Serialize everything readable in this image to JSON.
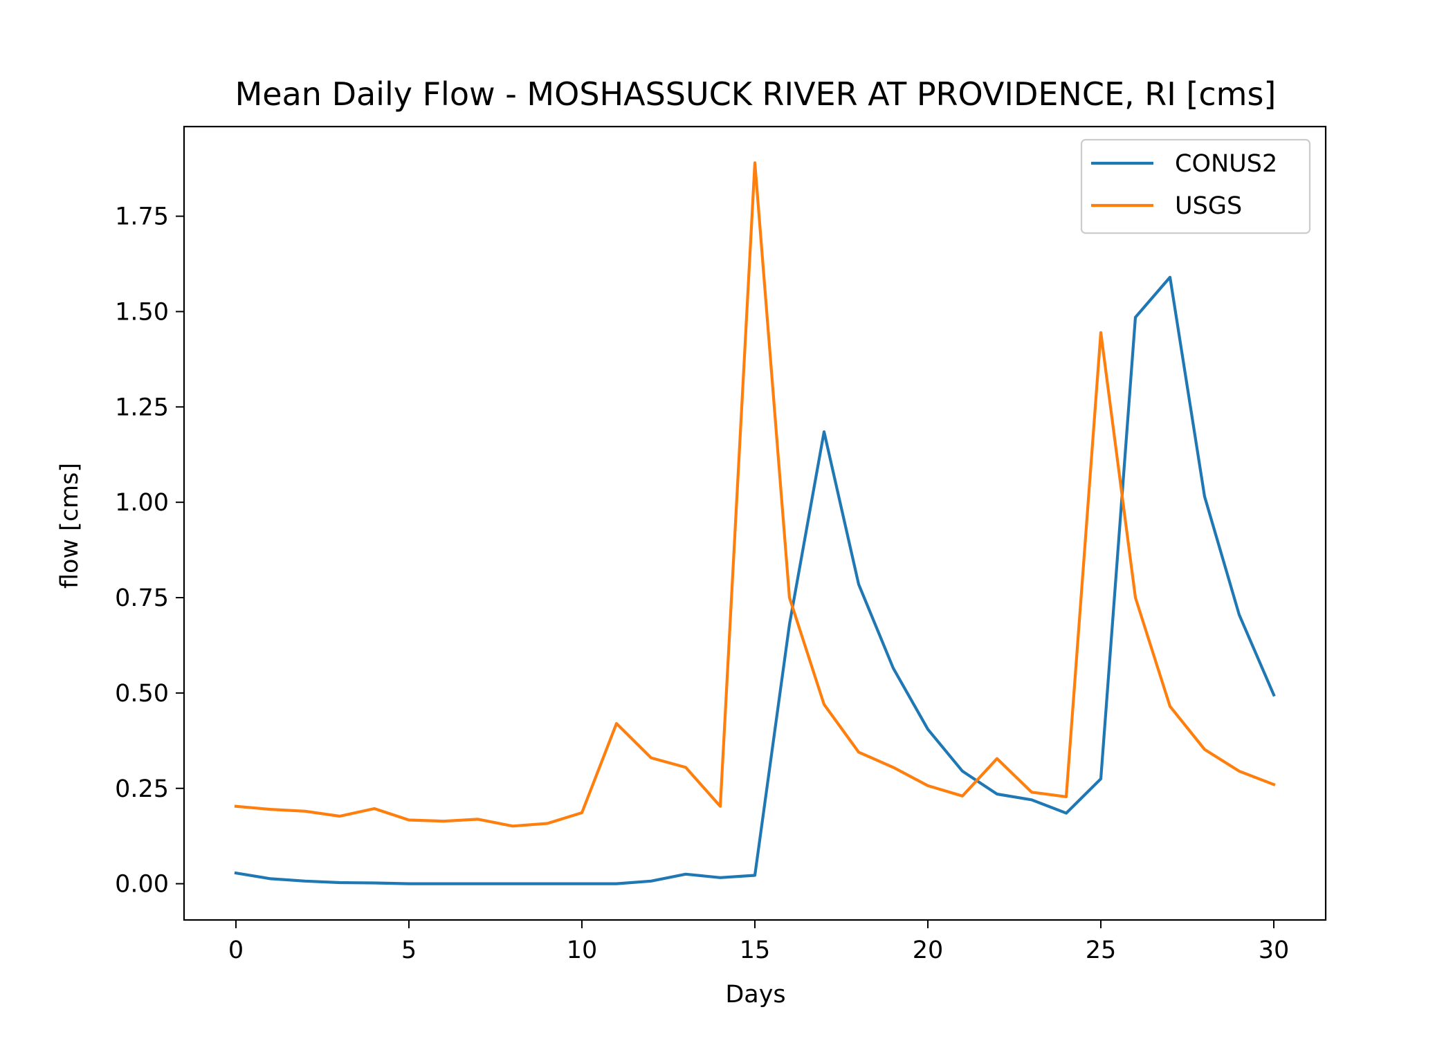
{
  "chart_data": {
    "type": "line",
    "title": "Mean Daily Flow - MOSHASSUCK RIVER AT PROVIDENCE, RI [cms]",
    "xlabel": "Days",
    "ylabel": "flow [cms]",
    "xlim": [
      -1.5,
      31.5
    ],
    "ylim": [
      -0.095,
      1.985
    ],
    "xticks": [
      0,
      5,
      10,
      15,
      20,
      25,
      30
    ],
    "xtick_labels": [
      "0",
      "5",
      "10",
      "15",
      "20",
      "25",
      "30"
    ],
    "yticks": [
      0.0,
      0.25,
      0.5,
      0.75,
      1.0,
      1.25,
      1.5,
      1.75
    ],
    "ytick_labels": [
      "0.00",
      "0.25",
      "0.50",
      "0.75",
      "1.00",
      "1.25",
      "1.50",
      "1.75"
    ],
    "grid": false,
    "legend_position": "top-right",
    "x": [
      0,
      1,
      2,
      3,
      4,
      5,
      6,
      7,
      8,
      9,
      10,
      11,
      12,
      13,
      14,
      15,
      16,
      17,
      18,
      19,
      20,
      21,
      22,
      23,
      24,
      25,
      26,
      27,
      28,
      29,
      30
    ],
    "series": [
      {
        "name": "CONUS2",
        "color": "#1f77b4",
        "values": [
          0.028,
          0.013,
          0.007,
          0.003,
          0.002,
          0.0,
          0.0,
          0.0,
          0.0,
          0.0,
          0.0,
          0.0,
          0.007,
          0.025,
          0.016,
          0.022,
          0.68,
          1.185,
          0.785,
          0.565,
          0.405,
          0.295,
          0.235,
          0.22,
          0.185,
          0.275,
          1.485,
          1.59,
          1.015,
          0.705,
          0.495
        ]
      },
      {
        "name": "USGS",
        "color": "#ff7f0e",
        "values": [
          0.203,
          0.195,
          0.19,
          0.177,
          0.197,
          0.167,
          0.164,
          0.169,
          0.151,
          0.158,
          0.186,
          0.42,
          0.33,
          0.305,
          0.203,
          1.89,
          0.75,
          0.47,
          0.345,
          0.305,
          0.257,
          0.23,
          0.328,
          0.24,
          0.228,
          1.445,
          0.75,
          0.465,
          0.352,
          0.295,
          0.26
        ]
      }
    ]
  }
}
